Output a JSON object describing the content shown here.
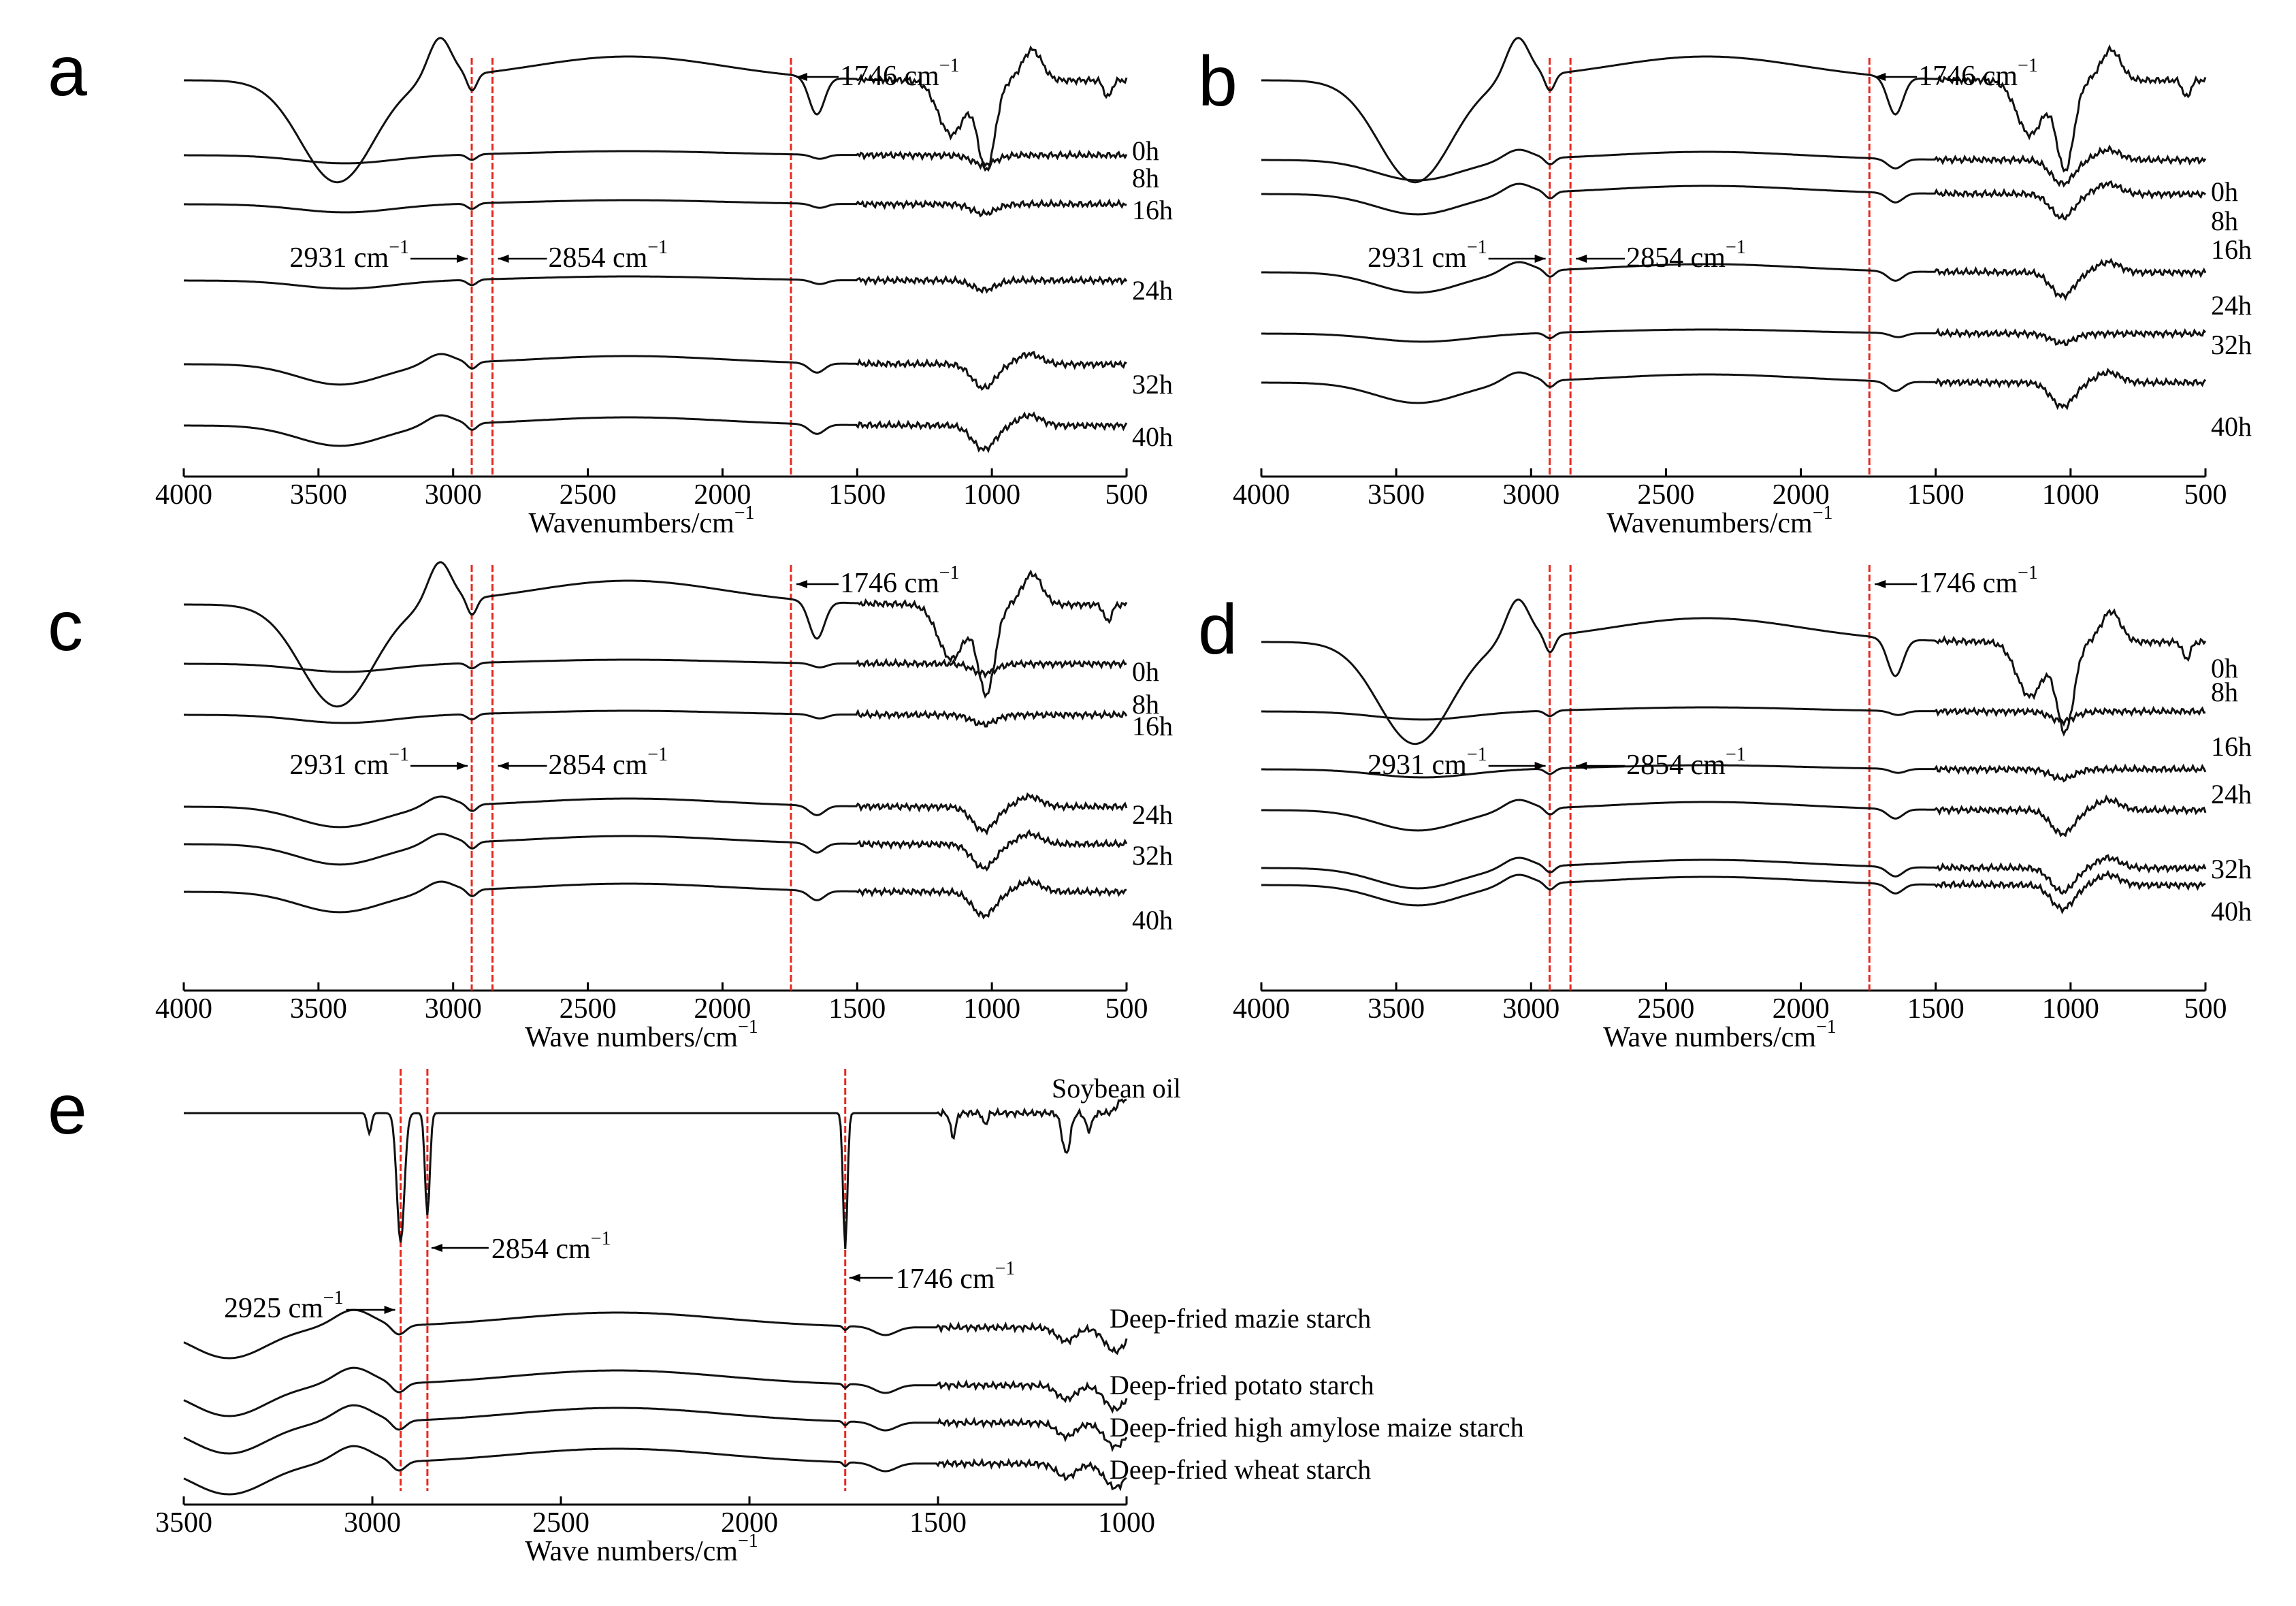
{
  "chart_data": [
    {
      "panel": "a",
      "type": "line",
      "xlabel": "Wavenumbers/cm",
      "xlabel_exp": "−1",
      "xlim": [
        4000,
        500
      ],
      "ticks": [
        4000,
        3500,
        3000,
        2500,
        2000,
        1500,
        1000,
        500
      ],
      "markers": [
        2931,
        2854,
        1746
      ],
      "annotations": [
        {
          "text": "1746 cm",
          "exp": "−1",
          "x": 1746
        },
        {
          "text": "2931 cm",
          "exp": "−1",
          "x": 2931
        },
        {
          "text": "2854 cm",
          "exp": "−1",
          "x": 2854
        }
      ],
      "series": [
        {
          "name": "0h",
          "profile": "full"
        },
        {
          "name": "8h",
          "profile": "flat"
        },
        {
          "name": "16h",
          "profile": "flat"
        },
        {
          "name": "24h",
          "profile": "flat"
        },
        {
          "name": "32h",
          "profile": "mod"
        },
        {
          "name": "40h",
          "profile": "mod"
        }
      ]
    },
    {
      "panel": "b",
      "type": "line",
      "xlabel": "Wavenumbers/cm",
      "xlabel_exp": "−1",
      "xlim": [
        4000,
        500
      ],
      "ticks": [
        4000,
        3500,
        3000,
        2500,
        2000,
        1500,
        1000,
        500
      ],
      "markers": [
        2931,
        2854,
        1746
      ],
      "annotations": [
        {
          "text": "1746 cm",
          "exp": "−1",
          "x": 1746
        },
        {
          "text": "2931 cm",
          "exp": "−1",
          "x": 2931
        },
        {
          "text": "2854 cm",
          "exp": "−1",
          "x": 2854
        }
      ],
      "series": [
        {
          "name": "0h",
          "profile": "full"
        },
        {
          "name": "8h",
          "profile": "mod"
        },
        {
          "name": "16h",
          "profile": "mod"
        },
        {
          "name": "24h",
          "profile": "mod"
        },
        {
          "name": "32h",
          "profile": "flat"
        },
        {
          "name": "40h",
          "profile": "mod"
        }
      ]
    },
    {
      "panel": "c",
      "type": "line",
      "xlabel": "Wave numbers/cm",
      "xlabel_exp": "−1",
      "xlim": [
        4000,
        500
      ],
      "ticks": [
        4000,
        3500,
        3000,
        2500,
        2000,
        1500,
        1000,
        500
      ],
      "markers": [
        2931,
        2854,
        1746
      ],
      "annotations": [
        {
          "text": "1746 cm",
          "exp": "−1",
          "x": 1746
        },
        {
          "text": "2931 cm",
          "exp": "−1",
          "x": 2931
        },
        {
          "text": "2854 cm",
          "exp": "−1",
          "x": 2854
        }
      ],
      "series": [
        {
          "name": "0h",
          "profile": "full"
        },
        {
          "name": "8h",
          "profile": "flat"
        },
        {
          "name": "16h",
          "profile": "flat"
        },
        {
          "name": "24h",
          "profile": "mod"
        },
        {
          "name": "32h",
          "profile": "mod"
        },
        {
          "name": "40h",
          "profile": "mod"
        }
      ]
    },
    {
      "panel": "d",
      "type": "line",
      "xlabel": "Wave numbers/cm",
      "xlabel_exp": "−1",
      "xlim": [
        4000,
        500
      ],
      "ticks": [
        4000,
        3500,
        3000,
        2500,
        2000,
        1500,
        1000,
        500
      ],
      "markers": [
        2931,
        2854,
        1746
      ],
      "annotations": [
        {
          "text": "1746 cm",
          "exp": "−1",
          "x": 1746
        },
        {
          "text": "2931 cm",
          "exp": "−1",
          "x": 2931
        },
        {
          "text": "2854 cm",
          "exp": "−1",
          "x": 2854
        }
      ],
      "series": [
        {
          "name": "0h",
          "profile": "full"
        },
        {
          "name": "8h",
          "profile": "flat"
        },
        {
          "name": "16h",
          "profile": "flat"
        },
        {
          "name": "24h",
          "profile": "mod"
        },
        {
          "name": "32h",
          "profile": "mod"
        },
        {
          "name": "40h",
          "profile": "mod"
        }
      ]
    },
    {
      "panel": "e",
      "type": "line",
      "xlabel": "Wave numbers/cm",
      "xlabel_exp": "−1",
      "xlim": [
        3500,
        1000
      ],
      "ticks": [
        3500,
        3000,
        2500,
        2000,
        1500,
        1000
      ],
      "markers": [
        2925,
        2854,
        1746
      ],
      "annotations": [
        {
          "text": "2854 cm",
          "exp": "−1",
          "x": 2854
        },
        {
          "text": "1746 cm",
          "exp": "−1",
          "x": 1746
        },
        {
          "text": "2925 cm",
          "exp": "−1",
          "x": 2925
        }
      ],
      "series": [
        {
          "name": "Soybean oil",
          "profile": "oil"
        },
        {
          "name": "Deep-fried mazie starch",
          "profile": "starch"
        },
        {
          "name": "Deep-fried potato starch",
          "profile": "starch"
        },
        {
          "name": "Deep-fried high amylose maize starch",
          "profile": "starch"
        },
        {
          "name": "Deep-fried wheat starch",
          "profile": "starch"
        }
      ]
    }
  ]
}
